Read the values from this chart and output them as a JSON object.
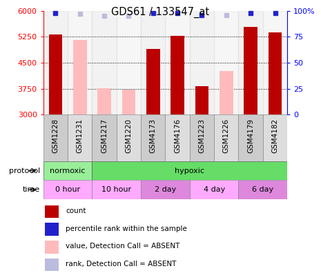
{
  "title": "GDS61 / 133547_at",
  "samples": [
    "GSM1228",
    "GSM1231",
    "GSM1217",
    "GSM1220",
    "GSM4173",
    "GSM4176",
    "GSM1223",
    "GSM1226",
    "GSM4179",
    "GSM4182"
  ],
  "count_values": [
    5310,
    null,
    null,
    null,
    4900,
    5270,
    3820,
    null,
    5530,
    5370
  ],
  "absent_values": [
    null,
    5150,
    3760,
    3720,
    null,
    null,
    null,
    4260,
    null,
    null
  ],
  "rank_values": [
    98,
    null,
    null,
    null,
    98,
    98,
    96,
    null,
    98,
    98
  ],
  "rank_absent_values": [
    null,
    97,
    95,
    95,
    null,
    null,
    null,
    96,
    null,
    null
  ],
  "ylim_left": [
    3000,
    6000
  ],
  "ylim_right": [
    0,
    100
  ],
  "yticks_left": [
    3000,
    3750,
    4500,
    5250,
    6000
  ],
  "yticks_right": [
    0,
    25,
    50,
    75,
    100
  ],
  "color_count": "#bb0000",
  "color_absent": "#ffbbbb",
  "color_rank": "#2222cc",
  "color_rank_absent": "#bbbbdd",
  "protocol_normoxic_color": "#99ee99",
  "protocol_hypoxic_color": "#66dd66",
  "time_colors": [
    "#ffaaff",
    "#ffaaff",
    "#dd88dd",
    "#ffaaff",
    "#dd88dd"
  ],
  "time_labels": [
    "0 hour",
    "10 hour",
    "2 day",
    "4 day",
    "6 day"
  ],
  "protocol_labels": [
    "normoxic",
    "hypoxic"
  ],
  "sample_col_colors": [
    "#cccccc",
    "#dddddd",
    "#cccccc",
    "#dddddd",
    "#cccccc",
    "#dddddd",
    "#cccccc",
    "#dddddd",
    "#cccccc",
    "#dddddd"
  ],
  "legend_items": [
    {
      "label": "count",
      "color": "#bb0000"
    },
    {
      "label": "percentile rank within the sample",
      "color": "#2222cc"
    },
    {
      "label": "value, Detection Call = ABSENT",
      "color": "#ffbbbb"
    },
    {
      "label": "rank, Detection Call = ABSENT",
      "color": "#bbbbdd"
    }
  ]
}
